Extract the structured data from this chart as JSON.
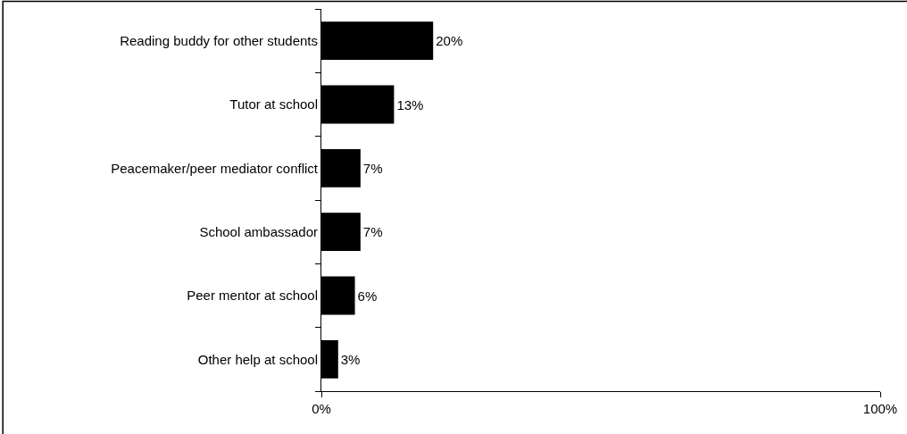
{
  "chart_data": {
    "type": "bar",
    "orientation": "horizontal",
    "categories": [
      "Reading buddy for other students",
      "Tutor at school",
      "Peacemaker/peer mediator conflict",
      "School ambassador",
      "Peer mentor at school",
      "Other help at school"
    ],
    "values": [
      20,
      13,
      7,
      7,
      6,
      3
    ],
    "value_labels": [
      "20%",
      "13%",
      "7%",
      "7%",
      "6%",
      "3%"
    ],
    "color": "#000000",
    "xlim": [
      0,
      100
    ],
    "xticks": [
      {
        "value": 0,
        "label": "0%"
      },
      {
        "value": 100,
        "label": "100%"
      }
    ],
    "legend": false
  }
}
